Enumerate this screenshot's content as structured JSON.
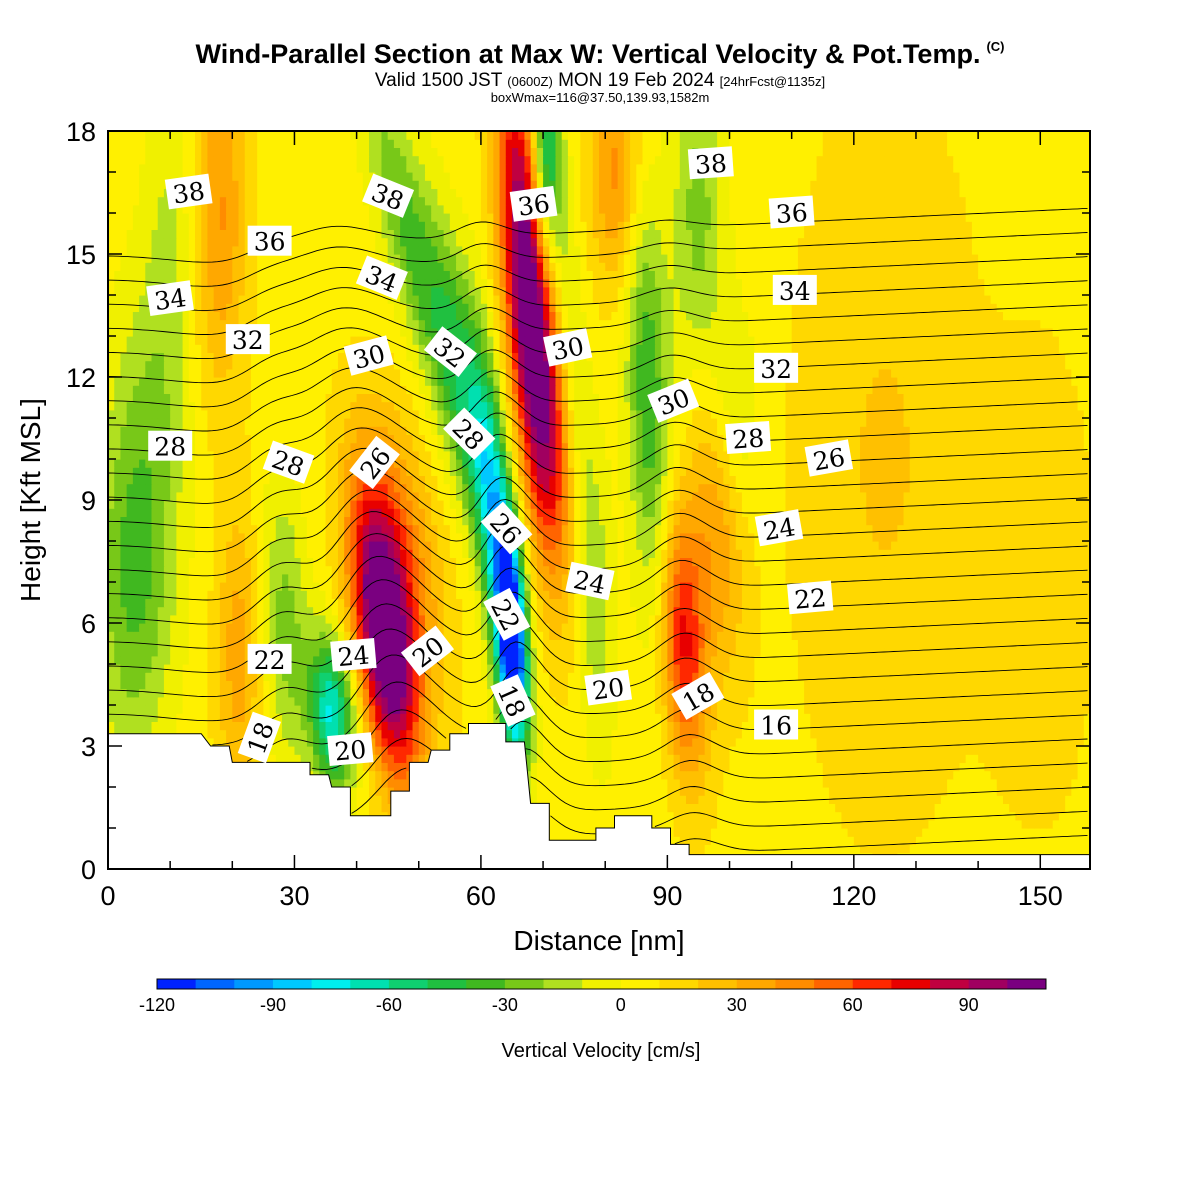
{
  "header": {
    "title": "Wind-Parallel Section at Max W: Vertical Velocity & Pot.Temp.",
    "copyright": "(C)",
    "valid_main": "Valid 1500 JST",
    "valid_z": "(0600Z)",
    "valid_date": "MON 19 Feb 2024",
    "valid_fcst": "[24hrFcst@1135z]",
    "box_info": "boxWmax=116@37.50,139.93,1582m"
  },
  "chart_data": {
    "type": "contour",
    "xlabel": "Distance [nm]",
    "ylabel": "Height [Kft MSL]",
    "xlim": [
      0,
      158
    ],
    "ylim": [
      0,
      18
    ],
    "x_ticks": [
      "0",
      "30",
      "60",
      "90",
      "120",
      "150"
    ],
    "y_ticks": [
      "0",
      "3",
      "6",
      "9",
      "12",
      "15",
      "18"
    ],
    "colorbar": {
      "label": "Vertical Velocity [cm/s]",
      "min": -120,
      "max": 110,
      "step": 10,
      "ticks": [
        "-120",
        "-90",
        "-60",
        "-30",
        "0",
        "30",
        "60",
        "90"
      ],
      "colors": [
        "#0022ff",
        "#0066ff",
        "#0099ff",
        "#00c8ff",
        "#00eeee",
        "#00e0b0",
        "#10d070",
        "#20c040",
        "#40b820",
        "#78c818",
        "#b0e020",
        "#f0f000",
        "#fff000",
        "#ffd800",
        "#ffc000",
        "#ffa800",
        "#ff8c00",
        "#ff6400",
        "#ff2800",
        "#e80000",
        "#c00040",
        "#a00060",
        "#7a0080"
      ]
    },
    "terrain_kft": [
      [
        0,
        3.3
      ],
      [
        15,
        3.3
      ],
      [
        16.5,
        3.0
      ],
      [
        19.5,
        3.0
      ],
      [
        20,
        2.6
      ],
      [
        32.5,
        2.6
      ],
      [
        32.5,
        2.3
      ],
      [
        35.5,
        2.3
      ],
      [
        36,
        2.0
      ],
      [
        39,
        2.0
      ],
      [
        39,
        1.3
      ],
      [
        45.5,
        1.3
      ],
      [
        45.5,
        1.9
      ],
      [
        48.5,
        1.9
      ],
      [
        48.5,
        2.6
      ],
      [
        51.5,
        2.6
      ],
      [
        52,
        2.9
      ],
      [
        55,
        2.9
      ],
      [
        55,
        3.3
      ],
      [
        58,
        3.3
      ],
      [
        58,
        3.55
      ],
      [
        64,
        3.55
      ],
      [
        64,
        3.1
      ],
      [
        67,
        3.1
      ],
      [
        68,
        1.6
      ],
      [
        71,
        1.6
      ],
      [
        71,
        0.7
      ],
      [
        78.5,
        0.7
      ],
      [
        78.5,
        1.0
      ],
      [
        81.5,
        1.0
      ],
      [
        81.5,
        1.3
      ],
      [
        87.5,
        1.3
      ],
      [
        87.5,
        1.0
      ],
      [
        90.5,
        1.0
      ],
      [
        90.5,
        0.6
      ],
      [
        93.5,
        0.6
      ],
      [
        93.5,
        0.35
      ],
      [
        158,
        0.35
      ]
    ],
    "w_features": [
      {
        "x": 44.5,
        "y": 5.6,
        "sx": 3.2,
        "sy": 2.4,
        "tilt": -0.75,
        "amp": 112
      },
      {
        "x": 47,
        "y": 7.6,
        "sx": 4.5,
        "sy": 2.5,
        "tilt": -0.8,
        "amp": 40
      },
      {
        "x": 36,
        "y": 3.8,
        "sx": 2.6,
        "sy": 1.3,
        "tilt": -0.4,
        "amp": -78
      },
      {
        "x": 28.5,
        "y": 6.0,
        "sx": 2.6,
        "sy": 2.4,
        "tilt": -0.2,
        "amp": -30
      },
      {
        "x": 21,
        "y": 5.2,
        "sx": 2.5,
        "sy": 2.5,
        "tilt": 0.0,
        "amp": 30
      },
      {
        "x": 4,
        "y": 6.5,
        "sx": 4.5,
        "sy": 3.0,
        "tilt": 0.0,
        "amp": -32
      },
      {
        "x": 5,
        "y": 10.5,
        "sx": 4.0,
        "sy": 3.0,
        "tilt": 0.0,
        "amp": -18
      },
      {
        "x": 65,
        "y": 5.5,
        "sx": 1.7,
        "sy": 1.9,
        "tilt": -0.3,
        "amp": -118
      },
      {
        "x": 62.5,
        "y": 8.5,
        "sx": 2.1,
        "sy": 3.0,
        "tilt": -0.6,
        "amp": -70
      },
      {
        "x": 57.5,
        "y": 11.5,
        "sx": 2.6,
        "sy": 2.8,
        "tilt": -0.9,
        "amp": -40
      },
      {
        "x": 51,
        "y": 14.2,
        "sx": 3.0,
        "sy": 2.8,
        "tilt": -1.3,
        "amp": -28
      },
      {
        "x": 45.5,
        "y": 16.8,
        "sx": 3.0,
        "sy": 2.6,
        "tilt": -1.5,
        "amp": -18
      },
      {
        "x": 67,
        "y": 15.0,
        "sx": 2.6,
        "sy": 3.5,
        "tilt": -0.5,
        "amp": 90
      },
      {
        "x": 70,
        "y": 11.0,
        "sx": 2.8,
        "sy": 3.0,
        "tilt": -0.5,
        "amp": 62
      },
      {
        "x": 70.5,
        "y": 17.5,
        "sx": 1.6,
        "sy": 2.0,
        "tilt": 0.0,
        "amp": -62
      },
      {
        "x": 74,
        "y": 14.0,
        "sx": 1.6,
        "sy": 3.0,
        "tilt": -0.4,
        "amp": -20
      },
      {
        "x": 87,
        "y": 11.5,
        "sx": 2.5,
        "sy": 4.0,
        "tilt": -0.25,
        "amp": -45
      },
      {
        "x": 78,
        "y": 7.0,
        "sx": 2.2,
        "sy": 3.0,
        "tilt": -0.25,
        "amp": -25
      },
      {
        "x": 95,
        "y": 16.0,
        "sx": 3.0,
        "sy": 3.0,
        "tilt": 0.0,
        "amp": -30
      },
      {
        "x": 100.5,
        "y": 11.0,
        "sx": 3.0,
        "sy": 2.0,
        "tilt": 0.0,
        "amp": -20
      },
      {
        "x": 92.5,
        "y": 5.6,
        "sx": 2.6,
        "sy": 2.3,
        "tilt": -0.3,
        "amp": 68
      },
      {
        "x": 98,
        "y": 8.5,
        "sx": 3.0,
        "sy": 2.5,
        "tilt": -0.3,
        "amp": 35
      },
      {
        "x": 82,
        "y": 17.0,
        "sx": 3.0,
        "sy": 2.0,
        "tilt": 0.0,
        "amp": 40
      },
      {
        "x": 18,
        "y": 16.0,
        "sx": 3.0,
        "sy": 3.0,
        "tilt": 0.0,
        "amp": 35
      },
      {
        "x": 10,
        "y": 14.5,
        "sx": 3.0,
        "sy": 4.0,
        "tilt": 0.0,
        "amp": -18
      },
      {
        "x": 125,
        "y": 10.0,
        "sx": 10.0,
        "sy": 6.0,
        "tilt": 0.0,
        "amp": 15
      },
      {
        "x": 150,
        "y": 7.0,
        "sx": 6.0,
        "sy": 4.0,
        "tilt": 0.0,
        "amp": 12
      }
    ],
    "theta_levels": [
      14,
      15,
      16,
      17,
      18,
      19,
      20,
      21,
      22,
      23,
      24,
      25,
      26,
      27,
      28,
      29,
      30,
      31,
      32,
      33,
      34,
      35,
      36,
      37,
      38,
      39,
      40
    ],
    "contour_labels": [
      {
        "text": "38",
        "x": 13,
        "y": 16.5,
        "rot": -8
      },
      {
        "text": "38",
        "x": 45,
        "y": 16.4,
        "rot": 22
      },
      {
        "text": "36",
        "x": 68.5,
        "y": 16.2,
        "rot": -8
      },
      {
        "text": "38",
        "x": 97,
        "y": 17.2,
        "rot": -4
      },
      {
        "text": "36",
        "x": 110,
        "y": 16.0,
        "rot": -4
      },
      {
        "text": "36",
        "x": 26,
        "y": 15.3,
        "rot": 0
      },
      {
        "text": "34",
        "x": 10,
        "y": 13.9,
        "rot": -8
      },
      {
        "text": "34",
        "x": 44,
        "y": 14.4,
        "rot": 22
      },
      {
        "text": "34",
        "x": 110.5,
        "y": 14.1,
        "rot": 0
      },
      {
        "text": "32",
        "x": 22.5,
        "y": 12.9,
        "rot": 0
      },
      {
        "text": "30",
        "x": 42,
        "y": 12.5,
        "rot": -15
      },
      {
        "text": "32",
        "x": 55,
        "y": 12.6,
        "rot": 38
      },
      {
        "text": "30",
        "x": 74,
        "y": 12.7,
        "rot": -12
      },
      {
        "text": "30",
        "x": 91,
        "y": 11.4,
        "rot": -22
      },
      {
        "text": "32",
        "x": 107.5,
        "y": 12.2,
        "rot": 0
      },
      {
        "text": "28",
        "x": 10,
        "y": 10.3,
        "rot": 0
      },
      {
        "text": "28",
        "x": 29,
        "y": 9.9,
        "rot": 20
      },
      {
        "text": "26",
        "x": 43,
        "y": 9.9,
        "rot": -52
      },
      {
        "text": "28",
        "x": 58,
        "y": 10.6,
        "rot": 45
      },
      {
        "text": "28",
        "x": 103,
        "y": 10.5,
        "rot": -4
      },
      {
        "text": "26",
        "x": 116,
        "y": 10.0,
        "rot": -10
      },
      {
        "text": "24",
        "x": 108,
        "y": 8.3,
        "rot": -10
      },
      {
        "text": "26",
        "x": 64,
        "y": 8.3,
        "rot": 48
      },
      {
        "text": "24",
        "x": 77.5,
        "y": 7.0,
        "rot": 12
      },
      {
        "text": "22",
        "x": 113,
        "y": 6.6,
        "rot": -5
      },
      {
        "text": "22",
        "x": 64,
        "y": 6.2,
        "rot": 62
      },
      {
        "text": "22",
        "x": 26,
        "y": 5.1,
        "rot": 0
      },
      {
        "text": "24",
        "x": 39.5,
        "y": 5.2,
        "rot": -5
      },
      {
        "text": "20",
        "x": 51.5,
        "y": 5.3,
        "rot": -38
      },
      {
        "text": "18",
        "x": 65,
        "y": 4.1,
        "rot": 66
      },
      {
        "text": "20",
        "x": 80.5,
        "y": 4.4,
        "rot": -8
      },
      {
        "text": "18",
        "x": 95,
        "y": 4.2,
        "rot": -30
      },
      {
        "text": "16",
        "x": 107.5,
        "y": 3.5,
        "rot": 0
      },
      {
        "text": "18",
        "x": 24.5,
        "y": 3.2,
        "rot": -70
      },
      {
        "text": "20",
        "x": 39,
        "y": 2.9,
        "rot": -5
      }
    ]
  }
}
